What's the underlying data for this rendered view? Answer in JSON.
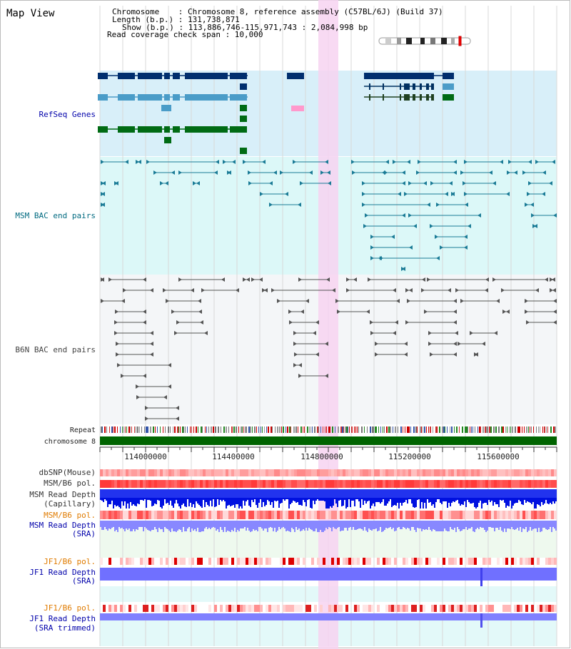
{
  "title": "Map View",
  "info": {
    "chromosome": "Chromosome    : Chromosome 8, reference assembly (C57BL/6J) (Build 37)",
    "length": "Length (b.p.) : 131,738,871",
    "show": "Show (b.p.) : 113,886,746-115,971,743 : 2,084,998 bp",
    "coverage": "Read coverage check span : 10,000"
  },
  "tracks": {
    "refseq": "RefSeq Genes",
    "msm_bac": "MSM BAC end pairs",
    "b6n_bac": "B6N BAC end pairs",
    "repeat": "Repeat",
    "chromosome": "chromosome 8",
    "dbsnp": "dbSNP(Mouse)",
    "msm_b6_pol": "MSM/B6 pol.",
    "msm_depth_cap_1": "MSM Read Depth",
    "msm_depth_cap_2": "(Capillary)",
    "msm_b6_pol_2": "MSM/B6 pol.",
    "msm_depth_sra_1": "MSM Read Depth",
    "msm_depth_sra_2": "(SRA)",
    "jf1_pol": "JF1/B6 pol.",
    "jf1_depth_1": "JF1 Read Depth",
    "jf1_depth_2": "(SRA)",
    "jf1_pol_2": "JF1/B6 pol.",
    "jf1_trim_1": "JF1 Read Depth",
    "jf1_trim_2": "(SRA trimmed)"
  },
  "axis": {
    "ticks": [
      "114000000",
      "114400000",
      "114800000",
      "115200000",
      "115600000"
    ]
  },
  "colors": {
    "refseq_bg": "#d8eff9",
    "msm_bg": "#dcf8f8",
    "b6n_bg": "#f4f6f8",
    "highlight": "#f7d4f1",
    "chromosome": "#006400",
    "navy": "#002e6e",
    "steel": "#4a9cc8",
    "green": "#006b14",
    "teal": "#1a7b96",
    "gray": "#555555",
    "label_blue": "#0000aa",
    "label_teal": "#006a80",
    "label_orange": "#e07b00"
  }
}
